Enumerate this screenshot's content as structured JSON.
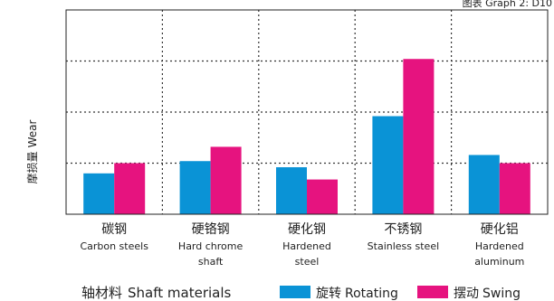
{
  "chart_data": {
    "type": "bar",
    "caption": "图表 Graph 2: D10",
    "ylabel_zh": "摩损量",
    "ylabel_en": "Wear",
    "xlabel_zh": "轴材料",
    "xlabel_en": "Shaft materials",
    "ylim": [
      0,
      100
    ],
    "grid": true,
    "legend_position": "bottom-right",
    "categories": [
      {
        "zh": "碳钢",
        "en": [
          "Carbon steels"
        ]
      },
      {
        "zh": "硬铬钢",
        "en": [
          "Hard chrome",
          "shaft"
        ]
      },
      {
        "zh": "硬化钢",
        "en": [
          "Hardened",
          "steel"
        ]
      },
      {
        "zh": "不锈钢",
        "en": [
          "Stainless steel"
        ]
      },
      {
        "zh": "硬化铝",
        "en": [
          "Hardened",
          "aluminum"
        ]
      }
    ],
    "series": [
      {
        "name_zh": "旋转",
        "name_en": "Rotating",
        "color": "#0a93d6",
        "values": [
          20,
          26,
          23,
          48,
          29
        ]
      },
      {
        "name_zh": "摆动",
        "name_en": "Swing",
        "color": "#e6137f",
        "values": [
          25,
          33,
          17,
          76,
          25
        ]
      }
    ]
  }
}
